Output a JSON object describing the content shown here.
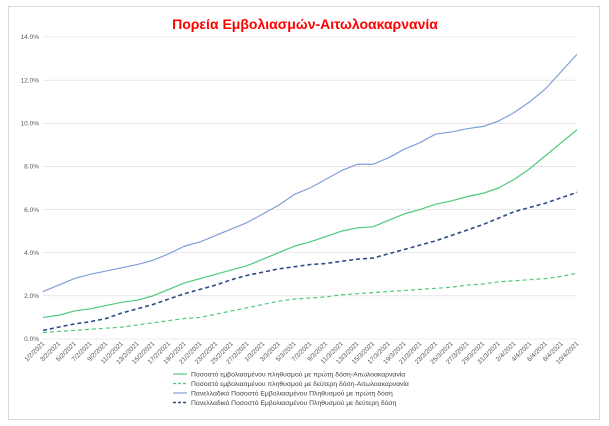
{
  "chart_data": {
    "type": "line",
    "title": "Πορεία Εμβολιασμών-Αιτωλοακαρνανία",
    "xlabel": "",
    "ylabel": "",
    "ylim": [
      0,
      14
    ],
    "y_ticks": [
      "0.0%",
      "2.0%",
      "4.0%",
      "6.0%",
      "8.0%",
      "10.0%",
      "12.0%",
      "14.0%"
    ],
    "y_tick_values": [
      0,
      2,
      4,
      6,
      8,
      10,
      12,
      14
    ],
    "categories": [
      "1/2/2021",
      "3/2/2021",
      "5/2/2021",
      "7/2/2021",
      "9/2/2021",
      "11/2/2021",
      "13/2/2021",
      "15/2/2021",
      "17/2/2021",
      "19/2/2021",
      "21/2/2021",
      "23/2/2021",
      "25/2/2021",
      "27/2/2021",
      "1/3/2021",
      "3/3/2021",
      "5/3/2021",
      "7/3/2021",
      "9/3/2021",
      "11/3/2021",
      "13/3/2021",
      "15/3/2021",
      "17/3/2021",
      "19/3/2021",
      "21/3/2021",
      "23/3/2021",
      "25/3/2021",
      "27/3/2021",
      "29/3/2021",
      "31/3/2021",
      "2/4/2021",
      "4/4/2021",
      "6/4/2021",
      "8/4/2021",
      "10/4/2021"
    ],
    "grid": true,
    "legend_position": "bottom",
    "series": [
      {
        "name": "Ποσοστό εμβολιασμένου πληθυσμού με πρώτη δόση-Αιτωλοακαρνανία",
        "color": "#4fc97c",
        "dash": "solid",
        "values": [
          1.0,
          1.1,
          1.3,
          1.4,
          1.55,
          1.7,
          1.8,
          2.0,
          2.3,
          2.6,
          2.8,
          3.0,
          3.2,
          3.4,
          3.7,
          4.0,
          4.3,
          4.5,
          4.75,
          5.0,
          5.15,
          5.2,
          5.5,
          5.8,
          6.0,
          6.25,
          6.4,
          6.6,
          6.75,
          7.0,
          7.4,
          7.9,
          8.5,
          9.1,
          9.7
        ]
      },
      {
        "name": "Ποσοστό εμβολιασμένου πληθυσμού με δεύτερη δόση-Αιτωλοακαρνανία",
        "color": "#4fc97c",
        "dash": "dashed",
        "values": [
          0.3,
          0.35,
          0.4,
          0.45,
          0.5,
          0.55,
          0.65,
          0.75,
          0.85,
          0.95,
          1.0,
          1.15,
          1.3,
          1.45,
          1.6,
          1.75,
          1.85,
          1.9,
          1.95,
          2.05,
          2.1,
          2.15,
          2.2,
          2.25,
          2.3,
          2.35,
          2.4,
          2.5,
          2.55,
          2.65,
          2.7,
          2.75,
          2.8,
          2.9,
          3.05
        ]
      },
      {
        "name": "Πανελλαδικό Ποσοστό Εμβολιασμένου Πληθυσμού με πρώτη δόση",
        "color": "#7f9fd8",
        "dash": "solid",
        "values": [
          2.2,
          2.5,
          2.8,
          3.0,
          3.15,
          3.3,
          3.45,
          3.65,
          3.95,
          4.3,
          4.5,
          4.8,
          5.1,
          5.4,
          5.8,
          6.2,
          6.7,
          7.0,
          7.4,
          7.8,
          8.1,
          8.1,
          8.4,
          8.8,
          9.1,
          9.5,
          9.6,
          9.75,
          9.85,
          10.1,
          10.5,
          11.0,
          11.6,
          12.4,
          13.2
        ]
      },
      {
        "name": "Πανελλαδικό Ποσοστό Εμβολιασμένου Πληθυσμού με δεύτερη δόση",
        "color": "#2e4a86",
        "dash": "dashed",
        "values": [
          0.4,
          0.55,
          0.7,
          0.8,
          0.95,
          1.2,
          1.4,
          1.6,
          1.85,
          2.1,
          2.3,
          2.5,
          2.75,
          2.95,
          3.1,
          3.25,
          3.35,
          3.45,
          3.5,
          3.6,
          3.7,
          3.75,
          3.95,
          4.15,
          4.35,
          4.55,
          4.8,
          5.05,
          5.3,
          5.6,
          5.9,
          6.1,
          6.3,
          6.55,
          6.8
        ]
      }
    ]
  }
}
